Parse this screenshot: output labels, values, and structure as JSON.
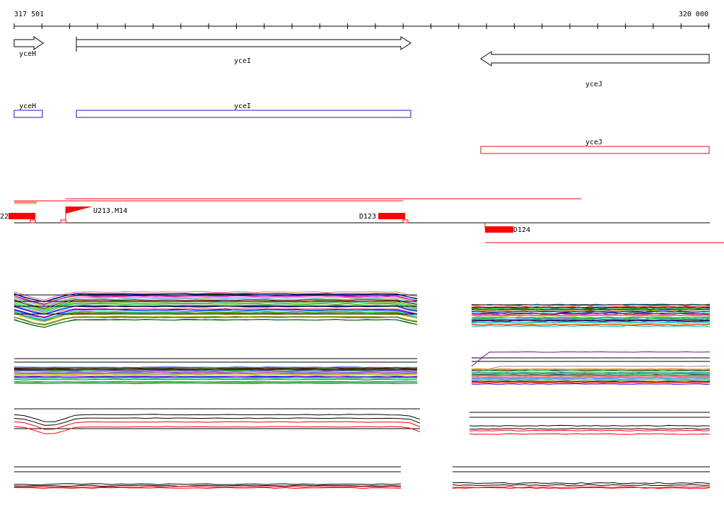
{
  "ruler": {
    "start_label": "317 501",
    "end_label": "320 000"
  },
  "genes_top": [
    {
      "name": "yceH",
      "strand": "+"
    },
    {
      "name": "yceI",
      "strand": "+"
    },
    {
      "name": "yceJ",
      "strand": "-"
    }
  ],
  "genes_annot": [
    {
      "name": "yceH",
      "color": "#1a1ad0"
    },
    {
      "name": "yceI",
      "color": "#1a1ad0"
    },
    {
      "name": "yceJ",
      "color": "#d01a1a"
    }
  ],
  "features": {
    "left_cut_label": "22",
    "flag_label": "U213.M14",
    "mid_label": "D123",
    "right_label": "D124"
  },
  "colors": {
    "feature_red": "#ff0000",
    "axis_black": "#000000"
  }
}
